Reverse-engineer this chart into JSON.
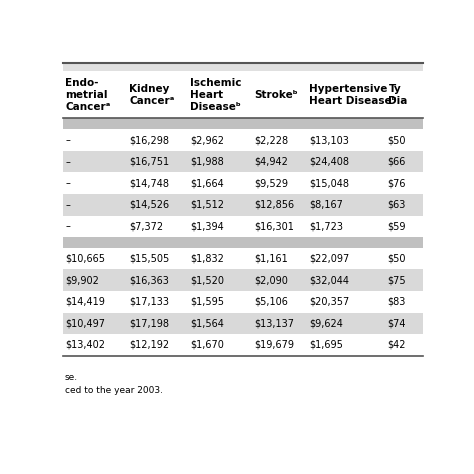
{
  "col_headers": [
    "Endo-\nmetrial\nCancerᵃ",
    "Kidney\nCancerᵃ",
    "Ischemic\nHeart\nDiseaseᵇ",
    "Strokeᵇ",
    "Hypertensive\nHeart Diseaseᵇ",
    "Ty\nDia"
  ],
  "section1_rows": [
    [
      "–",
      "$16,298",
      "$2,962",
      "$2,228",
      "$13,103",
      "$50"
    ],
    [
      "–",
      "$16,751",
      "$1,988",
      "$4,942",
      "$24,408",
      "$66"
    ],
    [
      "–",
      "$14,748",
      "$1,664",
      "$9,529",
      "$15,048",
      "$76"
    ],
    [
      "–",
      "$14,526",
      "$1,512",
      "$12,856",
      "$8,167",
      "$63"
    ],
    [
      "–",
      "$7,372",
      "$1,394",
      "$16,301",
      "$1,723",
      "$59"
    ]
  ],
  "section2_rows": [
    [
      "$10,665",
      "$15,505",
      "$1,832",
      "$1,161",
      "$22,097",
      "$50"
    ],
    [
      "$9,902",
      "$16,363",
      "$1,520",
      "$2,090",
      "$32,044",
      "$75"
    ],
    [
      "$14,419",
      "$17,133",
      "$1,595",
      "$5,106",
      "$20,357",
      "$83"
    ],
    [
      "$10,497",
      "$17,198",
      "$1,564",
      "$13,137",
      "$9,624",
      "$74"
    ],
    [
      "$13,402",
      "$12,192",
      "$1,670",
      "$19,679",
      "$1,695",
      "$42"
    ]
  ],
  "footnotes": [
    "se.",
    "ced to the year 2003."
  ],
  "alt_colors": [
    "#ffffff",
    "#d9d9d9"
  ],
  "sec_bar_color": "#c0c0c0",
  "font_size": 7.0,
  "header_font_size": 7.5
}
